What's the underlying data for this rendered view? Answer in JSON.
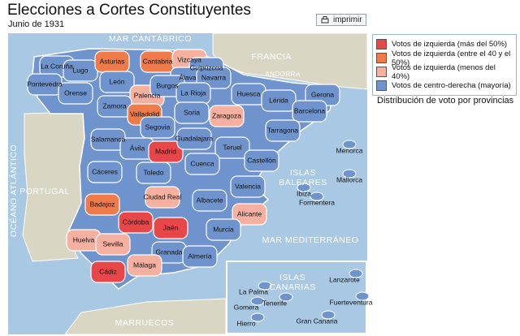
{
  "header": {
    "title": "Elecciones a Cortes Constituyentes",
    "subtitle": "Junio de 1931"
  },
  "print_button": "imprimir",
  "legend": [
    {
      "label": "Votos de izquierda (más del 50%)",
      "color": "#e8474a"
    },
    {
      "label": "Votos de izquierda (entre el 40 y el 50%)",
      "color": "#ef7a4a"
    },
    {
      "label": "Votos de izquierda (menos del 40%)",
      "color": "#f5b0a0"
    },
    {
      "label": "Votos de centro-derecha (mayoría)",
      "color": "#6f93cc"
    }
  ],
  "caption": "Distribución de voto por provincias",
  "places": [
    [
      "MAR CANTÁBRICO"
    ],
    [
      "FRANCIA"
    ],
    [
      "ANDORRA"
    ],
    [
      "PORTUGAL"
    ],
    [
      "OCÉANO ATLÁNTICO"
    ],
    [
      "ISLAS",
      "BALEARES"
    ],
    [
      "MAR MEDITERRÁNEO"
    ],
    [
      "MARRUECOS"
    ],
    [
      "ISLAS",
      "CANARIAS"
    ]
  ],
  "provinces": [
    {
      "name": "La Coruña",
      "group": 3
    },
    {
      "name": "Lugo",
      "group": 3
    },
    {
      "name": "Pontevedra",
      "group": 3
    },
    {
      "name": "Orense",
      "group": 3
    },
    {
      "name": "Asturias",
      "group": 1
    },
    {
      "name": "Cantabria",
      "group": 1
    },
    {
      "name": "Vizcaya",
      "group": 2
    },
    {
      "name": "Guipúzcoa",
      "group": 3
    },
    {
      "name": "Álava",
      "group": 3
    },
    {
      "name": "Navarra",
      "group": 3
    },
    {
      "name": "León",
      "group": 3
    },
    {
      "name": "Palencia",
      "group": 2
    },
    {
      "name": "Burgos",
      "group": 3
    },
    {
      "name": "La Rioja",
      "group": 3
    },
    {
      "name": "Huesca",
      "group": 3
    },
    {
      "name": "Lérida",
      "group": 3
    },
    {
      "name": "Gerona",
      "group": 3
    },
    {
      "name": "Barcelona",
      "group": 3
    },
    {
      "name": "Zamora",
      "group": 3
    },
    {
      "name": "Valladolid",
      "group": 1
    },
    {
      "name": "Soria",
      "group": 3
    },
    {
      "name": "Zaragoza",
      "group": 2
    },
    {
      "name": "Tarragona",
      "group": 3
    },
    {
      "name": "Segovia",
      "group": 3
    },
    {
      "name": "Salamanca",
      "group": 3
    },
    {
      "name": "Ávila",
      "group": 3
    },
    {
      "name": "Madrid",
      "group": 0
    },
    {
      "name": "Guadalajara",
      "group": 3
    },
    {
      "name": "Teruel",
      "group": 3
    },
    {
      "name": "Castellón",
      "group": 3
    },
    {
      "name": "Cáceres",
      "group": 3
    },
    {
      "name": "Toledo",
      "group": 3
    },
    {
      "name": "Cuenca",
      "group": 3
    },
    {
      "name": "Valencia",
      "group": 3
    },
    {
      "name": "Badajoz",
      "group": 1
    },
    {
      "name": "Ciudad Real",
      "group": 2
    },
    {
      "name": "Albacete",
      "group": 3
    },
    {
      "name": "Alicante",
      "group": 2
    },
    {
      "name": "Córdoba",
      "group": 0
    },
    {
      "name": "Jaén",
      "group": 0
    },
    {
      "name": "Murcia",
      "group": 3
    },
    {
      "name": "Huelva",
      "group": 2
    },
    {
      "name": "Sevilla",
      "group": 2
    },
    {
      "name": "Granada",
      "group": 3
    },
    {
      "name": "Almería",
      "group": 3
    },
    {
      "name": "Cádiz",
      "group": 0
    },
    {
      "name": "Málaga",
      "group": 2
    },
    {
      "name": "Mallorca",
      "group": 3
    },
    {
      "name": "Menorca",
      "group": 3
    },
    {
      "name": "Ibiza",
      "group": 3
    },
    {
      "name": "Formentera",
      "group": 3
    },
    {
      "name": "La Palma",
      "group": 3
    },
    {
      "name": "Gomera",
      "group": 3
    },
    {
      "name": "Tenerife",
      "group": 3
    },
    {
      "name": "Hierro",
      "group": 3
    },
    {
      "name": "Gran Canaria",
      "group": 3
    },
    {
      "name": "Lanzarote",
      "group": 3
    },
    {
      "name": "Fuerteventura",
      "group": 3
    }
  ]
}
